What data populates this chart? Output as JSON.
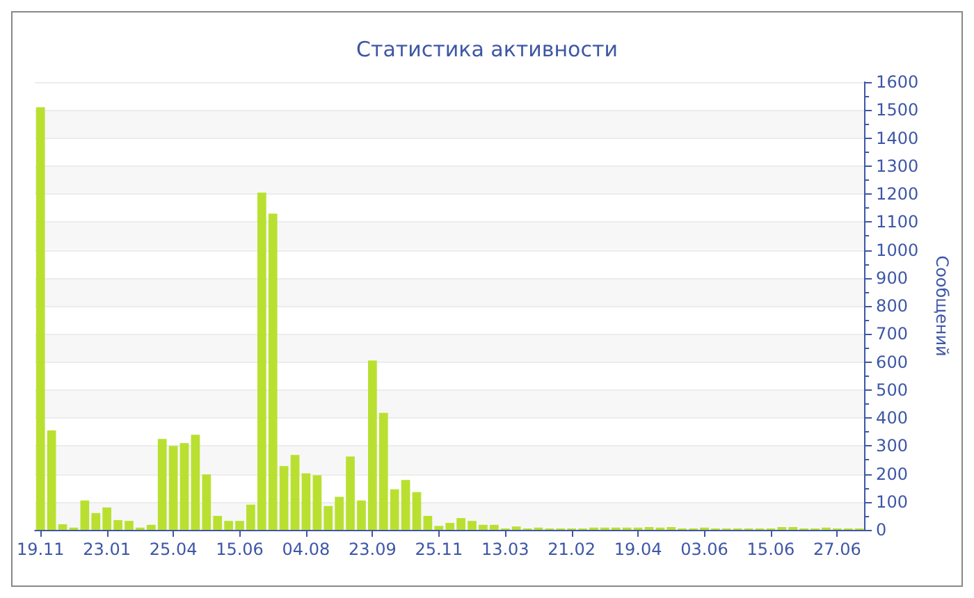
{
  "chart_data": {
    "type": "bar",
    "title": "Статистика активности",
    "ylabel": "Сообщений",
    "categories": [
      "19.11",
      null,
      null,
      null,
      null,
      null,
      "23.01",
      null,
      null,
      null,
      null,
      null,
      "25.04",
      null,
      null,
      null,
      null,
      null,
      "15.06",
      null,
      null,
      null,
      null,
      null,
      "04.08",
      null,
      null,
      null,
      null,
      null,
      "23.09",
      null,
      null,
      null,
      null,
      null,
      "25.11",
      null,
      null,
      null,
      null,
      null,
      "13.03",
      null,
      null,
      null,
      null,
      null,
      "21.02",
      null,
      null,
      null,
      null,
      null,
      "19.04",
      null,
      null,
      null,
      null,
      null,
      "03.06",
      null,
      null,
      null,
      null,
      null,
      "15.06",
      null,
      null,
      null,
      null,
      null,
      "27.06",
      null,
      null
    ],
    "values": [
      1510,
      355,
      20,
      8,
      105,
      60,
      80,
      35,
      32,
      8,
      18,
      325,
      300,
      310,
      340,
      198,
      50,
      32,
      32,
      90,
      1205,
      1130,
      228,
      268,
      202,
      195,
      85,
      118,
      262,
      105,
      605,
      418,
      145,
      178,
      135,
      50,
      14,
      25,
      42,
      32,
      18,
      18,
      5,
      12,
      5,
      8,
      5,
      5,
      5,
      5,
      8,
      8,
      8,
      8,
      8,
      10,
      8,
      10,
      5,
      5,
      8,
      5,
      5,
      5,
      5,
      5,
      5,
      10,
      10,
      5,
      5,
      8,
      5,
      5,
      5
    ],
    "color": "#b9e030",
    "ylim": [
      0,
      1600
    ],
    "yticks": [
      0,
      100,
      200,
      300,
      400,
      500,
      600,
      700,
      800,
      900,
      1000,
      1100,
      1200,
      1300,
      1400,
      1500,
      1600
    ],
    "grid": "y"
  }
}
